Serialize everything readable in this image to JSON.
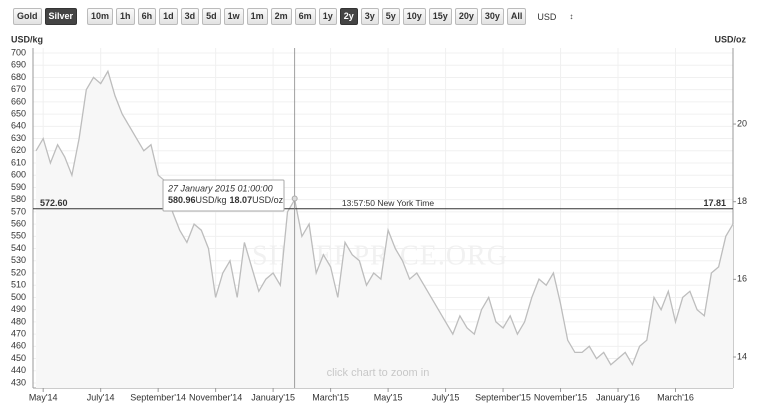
{
  "toolbar": {
    "metals": [
      "Gold",
      "Silver"
    ],
    "active_metal": "Silver",
    "ranges": [
      "10m",
      "1h",
      "6h",
      "1d",
      "3d",
      "5d",
      "1w",
      "1m",
      "2m",
      "6m",
      "1y",
      "2y",
      "3y",
      "5y",
      "10y",
      "15y",
      "20y",
      "30y",
      "All"
    ],
    "active_range": "2y",
    "currency": "USD"
  },
  "chart_data": {
    "type": "line",
    "y_label": "USD/kg",
    "y2_label": "USD/oz",
    "watermark": "SILVERPRICE.ORG",
    "hint": "click chart to zoom in",
    "categories": [
      null,
      "May'14",
      null,
      null,
      null,
      null,
      null,
      null,
      null,
      "July'14",
      null,
      null,
      null,
      null,
      null,
      null,
      null,
      "September'14",
      null,
      null,
      null,
      null,
      null,
      null,
      null,
      "November'14",
      null,
      null,
      null,
      null,
      null,
      null,
      null,
      "January'15",
      null,
      null,
      null,
      null,
      null,
      null,
      null,
      "March'15",
      null,
      null,
      null,
      null,
      null,
      null,
      null,
      "May'15",
      null,
      null,
      null,
      null,
      null,
      null,
      null,
      "July'15",
      null,
      null,
      null,
      null,
      null,
      null,
      null,
      "September'15",
      null,
      null,
      null,
      null,
      null,
      null,
      null,
      "November'15",
      null,
      null,
      null,
      null,
      null,
      null,
      null,
      "January'16",
      null,
      null,
      null,
      null,
      null,
      null,
      null,
      "March'16",
      null,
      null,
      null,
      null,
      null,
      null,
      null,
      null
    ],
    "series": [
      {
        "name": "Silver",
        "color": "#bdbdbd",
        "values": [
          620,
          630,
          610,
          625,
          615,
          600,
          630,
          670,
          680,
          675,
          685,
          665,
          650,
          640,
          630,
          620,
          625,
          600,
          595,
          570,
          555,
          545,
          560,
          555,
          540,
          500,
          520,
          530,
          500,
          545,
          525,
          505,
          515,
          520,
          510,
          570,
          580,
          550,
          560,
          520,
          535,
          525,
          500,
          545,
          535,
          530,
          510,
          520,
          515,
          555,
          540,
          530,
          515,
          520,
          510,
          500,
          490,
          480,
          470,
          485,
          475,
          470,
          490,
          500,
          480,
          475,
          485,
          470,
          480,
          500,
          515,
          510,
          520,
          495,
          465,
          455,
          455,
          460,
          450,
          455,
          445,
          450,
          455,
          445,
          460,
          465,
          500,
          490,
          505,
          480,
          500,
          505,
          490,
          485,
          520,
          525,
          550,
          560
        ]
      }
    ],
    "ylim": [
      430,
      700
    ],
    "yticks": [
      430,
      440,
      450,
      460,
      470,
      480,
      490,
      500,
      510,
      520,
      530,
      540,
      550,
      560,
      570,
      580,
      590,
      600,
      610,
      620,
      630,
      640,
      650,
      660,
      670,
      680,
      690,
      700
    ],
    "y2lim": [
      13.33,
      21.83
    ],
    "y2ticks": [
      14,
      16,
      18,
      20
    ],
    "grid": true,
    "current_line": {
      "value": 572.6,
      "label": "572.60",
      "y2_value": 17.81,
      "time": "13:57:50 New York Time"
    },
    "tooltip": {
      "date": "27 January 2015 01:00:00",
      "value_kg": 580.96,
      "unit_kg": "USD/kg",
      "value_oz": 18.07,
      "unit_oz": "USD/oz"
    }
  }
}
